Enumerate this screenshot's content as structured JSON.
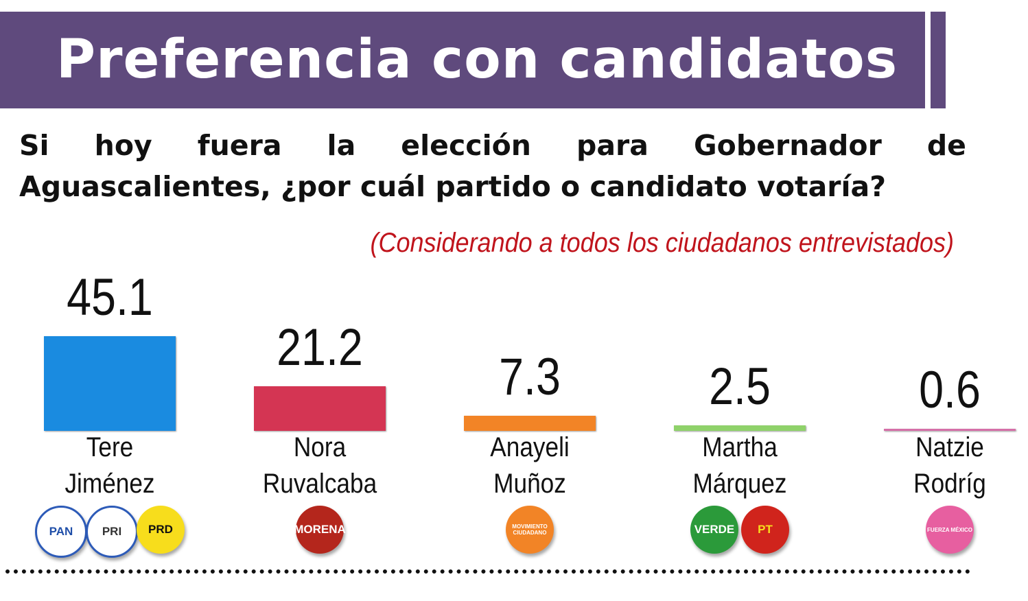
{
  "header": {
    "title": "Preferencia con candidatos"
  },
  "question": "Si hoy fuera la elección para Gobernador de Aguascalientes, ¿por cuál partido o candidato votaría?",
  "subtitle": "(Considerando a todos los ciudadanos entrevistados)",
  "chart_data": {
    "type": "bar",
    "categories": [
      "Tere Jiménez",
      "Nora Ruvalcaba",
      "Anayeli Muñoz",
      "Martha Márquez",
      "Natzie Rodríg"
    ],
    "values": [
      45.1,
      21.2,
      7.3,
      2.5,
      0.6
    ],
    "value_labels": [
      "45.1",
      "21.2",
      "7.3",
      "2.5",
      "0.6"
    ],
    "name_lines": [
      [
        "Tere",
        "Jiménez"
      ],
      [
        "Nora",
        "Ruvalcaba"
      ],
      [
        "Anayeli",
        "Muñoz"
      ],
      [
        "Martha",
        "Márquez"
      ],
      [
        "Natzie",
        "Rodríg"
      ]
    ],
    "colors": [
      "#1a8be0",
      "#d43553",
      "#f28426",
      "#8fd26a",
      "#d66fa8"
    ],
    "parties": [
      [
        {
          "label": "PAN",
          "bg": "#ffffff",
          "fg": "#1f4ea8"
        },
        {
          "label": "PRI",
          "bg": "#ffffff",
          "fg": "#333333"
        },
        {
          "label": "PRD",
          "bg": "#f7dd1c",
          "fg": "#111111"
        }
      ],
      [
        {
          "label": "MORENA",
          "bg": "#b4261c",
          "fg": "#ffffff"
        }
      ],
      [
        {
          "label": "MOVIMIENTO CIUDADANO",
          "bg": "#f28426",
          "fg": "#ffffff"
        }
      ],
      [
        {
          "label": "VERDE",
          "bg": "#2b9a3a",
          "fg": "#ffffff"
        },
        {
          "label": "PT",
          "bg": "#d0241c",
          "fg": "#f7dd1c"
        }
      ],
      [
        {
          "label": "FUERZA MÉXICO",
          "bg": "#e75fa0",
          "fg": "#ffffff"
        }
      ]
    ],
    "ylim": [
      0,
      45.1
    ],
    "grid": false
  }
}
